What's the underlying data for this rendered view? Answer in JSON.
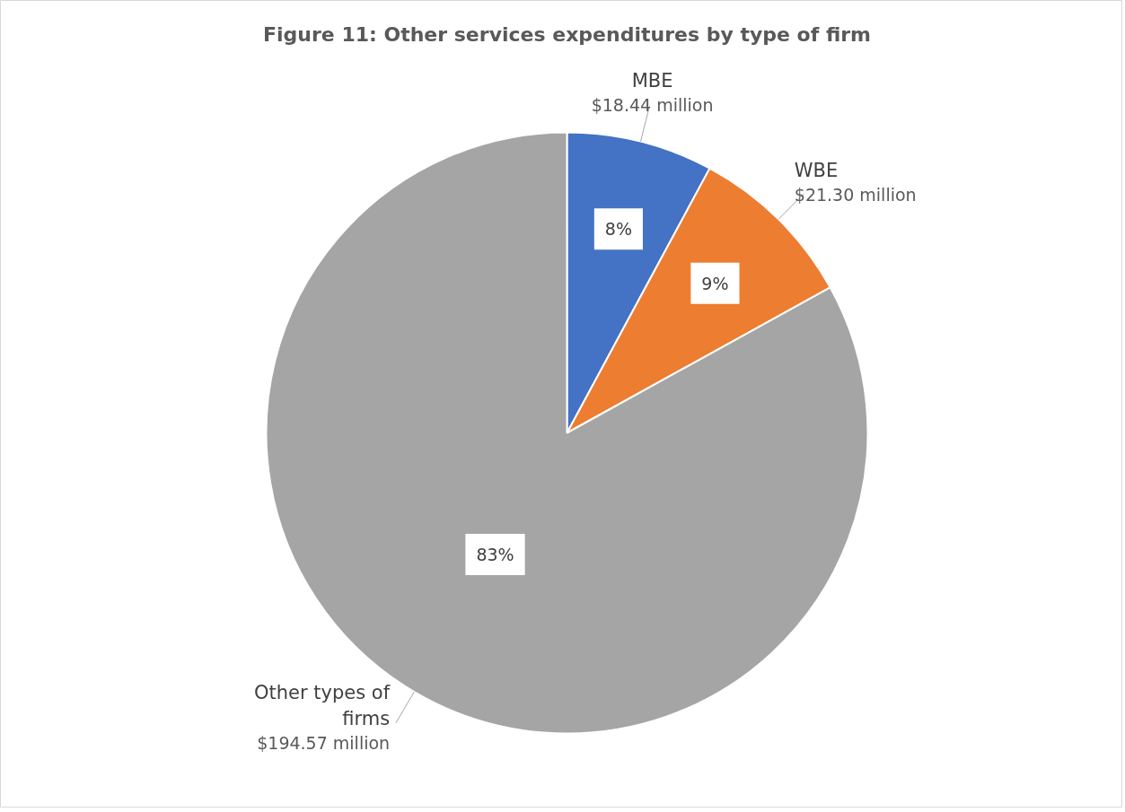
{
  "chart_data": {
    "type": "pie",
    "title": "Figure 11: Other services expenditures by type of firm",
    "categories": [
      "MBE",
      "WBE",
      "Other types of firms"
    ],
    "values": [
      18.44,
      21.3,
      194.57
    ],
    "colors": [
      "#4472c4",
      "#ed7d31",
      "#a5a5a5"
    ],
    "value_labels": [
      "$18.44 million",
      "$21.30 million",
      "$194.57 million"
    ],
    "annotations": [
      "8%",
      "9%",
      "83%"
    ]
  }
}
